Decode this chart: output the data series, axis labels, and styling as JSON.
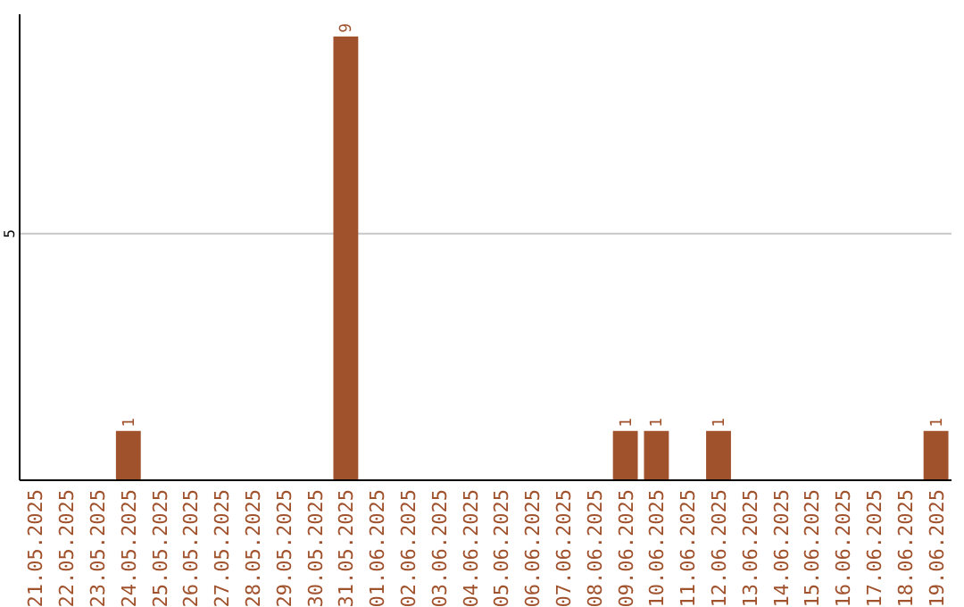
{
  "chart_data": {
    "type": "bar",
    "categories": [
      "21.05.2025",
      "22.05.2025",
      "23.05.2025",
      "24.05.2025",
      "25.05.2025",
      "26.05.2025",
      "27.05.2025",
      "28.05.2025",
      "29.05.2025",
      "30.05.2025",
      "31.05.2025",
      "01.06.2025",
      "02.06.2025",
      "03.06.2025",
      "04.06.2025",
      "05.06.2025",
      "06.06.2025",
      "07.06.2025",
      "08.06.2025",
      "09.06.2025",
      "10.06.2025",
      "11.06.2025",
      "12.06.2025",
      "13.06.2025",
      "14.06.2025",
      "15.06.2025",
      "16.06.2025",
      "17.06.2025",
      "18.06.2025",
      "19.06.2025"
    ],
    "values": [
      0,
      0,
      0,
      1,
      0,
      0,
      0,
      0,
      0,
      0,
      9,
      0,
      0,
      0,
      0,
      0,
      0,
      0,
      0,
      1,
      1,
      0,
      1,
      0,
      0,
      0,
      0,
      0,
      0,
      1
    ],
    "value_labels": [
      null,
      null,
      null,
      "1",
      null,
      null,
      null,
      null,
      null,
      null,
      "9",
      null,
      null,
      null,
      null,
      null,
      null,
      null,
      null,
      "1",
      "1",
      null,
      "1",
      null,
      null,
      null,
      null,
      null,
      null,
      "1"
    ],
    "color": "#a0522d",
    "ylim": [
      0,
      9.45
    ],
    "yticks": [
      5
    ],
    "grid": "y"
  }
}
